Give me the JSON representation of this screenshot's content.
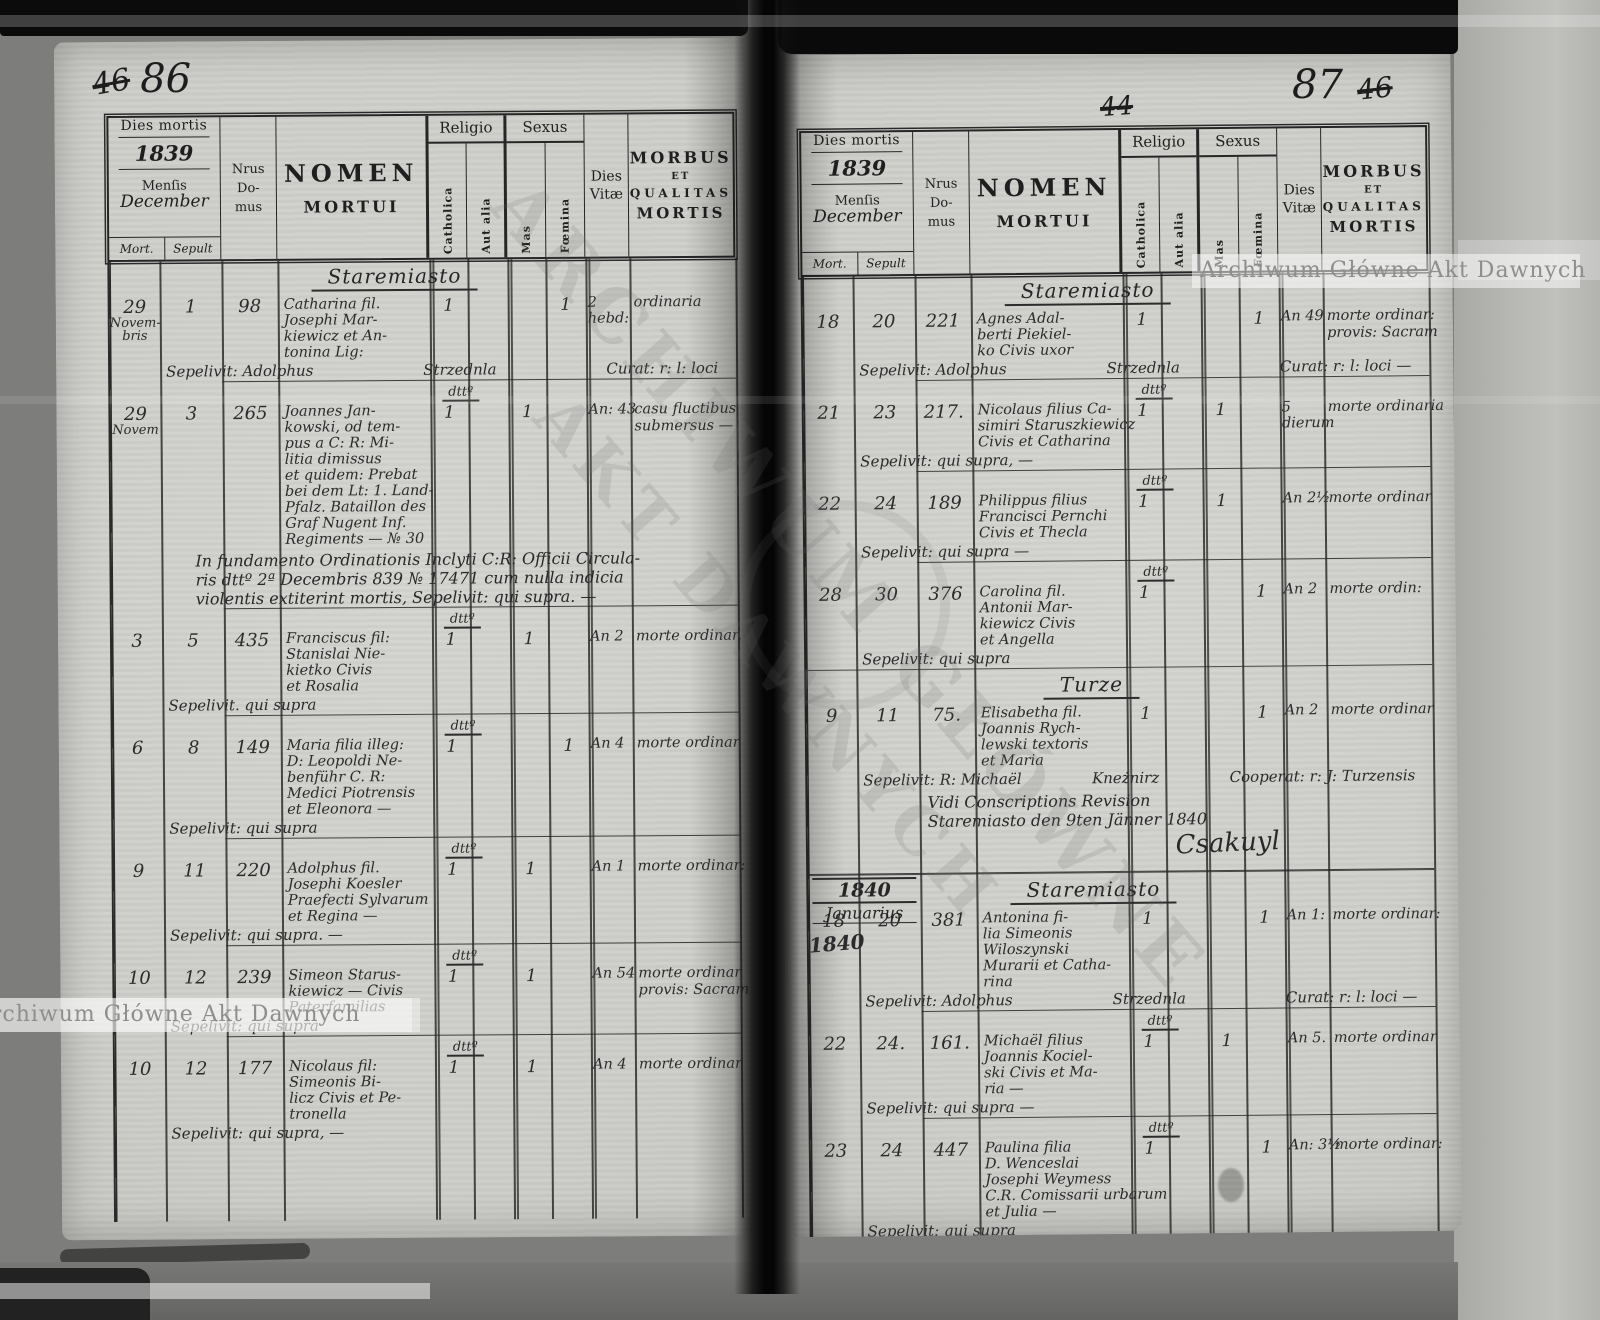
{
  "watermark": {
    "text": "Archiwum Główne Akt Dawnych",
    "big_line1": "ARCHIWUM GŁÓWNE",
    "big_line2": "AKT DAWNYCH"
  },
  "folios": {
    "left_crossed": "46",
    "left_number": "86",
    "right_center_crossed": "44",
    "right_number": "87",
    "right_crossed": "46"
  },
  "header": {
    "dies_mortis": "Dies mortis",
    "year": "1839",
    "mensis": "Menſis",
    "month": "December",
    "mort": "Mort.",
    "sepult": "Sepult",
    "nrus": "Nrus",
    "do": "Do-",
    "mus": "mus",
    "nomen": "NOMEN",
    "mortui": "MORTUI",
    "religio": "Religio",
    "catholica": "Catholica",
    "aut_alia": "Aut alia",
    "sexus": "Sexus",
    "mas": "Mas",
    "foemina": "Fœmina",
    "dies": "Dies",
    "vitae": "Vitæ",
    "morbus": "MORBUS",
    "et": "ET",
    "qualitas": "QUALITAS",
    "mortis": "MORTIS"
  },
  "dtto_label": "dttº",
  "left_page": {
    "blocks": [
      {
        "type": "place",
        "text": "Staremiasto",
        "first": true
      },
      {
        "type": "entry",
        "mort": [
          "29"
        ],
        "mort_sub": [
          "Novem-",
          "bris"
        ],
        "sepult": "1",
        "nrus": "98",
        "name": [
          "Catharina fil.",
          "Josephi Mar-",
          "kiewicz et An-",
          "tonina Lig:"
        ],
        "cath": "1",
        "alia": "",
        "mas": "",
        "foem": "1",
        "vitae": [
          "2",
          "hebd:"
        ],
        "morbus": [
          "ordinaria"
        ],
        "sepelivit": [
          "Sepelivit: Adolphus",
          "Strzednla",
          "Curat: r: l: loci"
        ],
        "spread": true,
        "dtto": true
      },
      {
        "type": "entry",
        "mort": [
          "29"
        ],
        "mort_sub": [
          "Novem"
        ],
        "sepult": "3",
        "nrus": "265",
        "name": [
          "Joannes Jan-",
          "kowski, od tem-",
          "pus a C: R: Mi-",
          "litia dimissus",
          "et quidem: Prebat",
          "bei dem Lt: 1. Land-",
          "Pfalz. Bataillon des",
          "Graf Nugent Inf.",
          "Regiments — № 30"
        ],
        "cath": "1",
        "alia": "",
        "mas": "1",
        "foem": "",
        "vitae": [
          "An: 43"
        ],
        "morbus": [
          "casu fluctibus",
          "submersus —"
        ],
        "sepelivit": null,
        "dtto": false
      },
      {
        "type": "note",
        "lines": [
          "In fundamento Ordinationis Inclyti C:R: Officii Circula-",
          "ris dttº 2ª Decembris 839 № 17471 cum nulla indicia",
          "violentis extiterint mortis, Sepelivit: qui supra. —"
        ],
        "dtto": true
      },
      {
        "type": "entry",
        "mort": [
          "3"
        ],
        "sepult": "5",
        "nrus": "435",
        "name": [
          "Franciscus fil:",
          "Stanislai Nie-",
          "kietko Civis",
          "et Rosalia"
        ],
        "cath": "1",
        "alia": "",
        "mas": "1",
        "foem": "",
        "vitae": [
          "An 2"
        ],
        "morbus": [
          "morte ordinar."
        ],
        "sepelivit": [
          "Sepelivit. qui supra"
        ],
        "dtto": true
      },
      {
        "type": "entry",
        "mort": [
          "6"
        ],
        "sepult": "8",
        "nrus": "149",
        "name": [
          "Maria filia illeg:",
          "D: Leopoldi Ne-",
          "benführ C. R:",
          "Medici Piotrensis",
          "et Eleonora —"
        ],
        "cath": "1",
        "alia": "",
        "mas": "",
        "foem": "1",
        "vitae": [
          "An 4"
        ],
        "morbus": [
          "morte ordinar"
        ],
        "sepelivit": [
          "Sepelivit: qui supra"
        ],
        "dtto": true
      },
      {
        "type": "entry",
        "mort": [
          "9"
        ],
        "sepult": "11",
        "nrus": "220",
        "name": [
          "Adolphus fil.",
          "Josephi Koesler",
          "Praefecti Sylvarum",
          "et Regina —"
        ],
        "cath": "1",
        "alia": "",
        "mas": "1",
        "foem": "",
        "vitae": [
          "An 1"
        ],
        "morbus": [
          "morte ordinar:"
        ],
        "sepelivit": [
          "Sepelivit: qui supra. —"
        ],
        "dtto": true
      },
      {
        "type": "entry",
        "mort": [
          "10"
        ],
        "sepult": "12",
        "nrus": "239",
        "name": [
          "Simeon Starus-",
          "kiewicz — Civis",
          "Paterfamilias"
        ],
        "cath": "1",
        "alia": "",
        "mas": "1",
        "foem": "",
        "vitae": [
          "An 54"
        ],
        "morbus": [
          "morte ordinar",
          "provis: Sacram."
        ],
        "sepelivit": [
          "Sepelivit: qui supra"
        ],
        "dtto": true
      },
      {
        "type": "entry",
        "mort": [
          "10"
        ],
        "sepult": "12",
        "nrus": "177",
        "name": [
          "Nicolaus fil:",
          "Simeonis Bi-",
          "licz Civis et Pe-",
          "tronella"
        ],
        "cath": "1",
        "alia": "",
        "mas": "1",
        "foem": "",
        "vitae": [
          "An 4"
        ],
        "morbus": [
          "morte ordinar"
        ],
        "sepelivit": [
          "Sepelivit: qui supra, —"
        ],
        "dtto": false
      }
    ]
  },
  "right_page": {
    "blocks": [
      {
        "type": "place",
        "text": "Staremiasto",
        "first": true
      },
      {
        "type": "entry",
        "mort": [
          "18"
        ],
        "sepult": "20",
        "nrus": "221",
        "name": [
          "Agnes Adal-",
          "berti Piekiel-",
          "ko Civis uxor"
        ],
        "cath": "1",
        "alia": "",
        "mas": "",
        "foem": "1",
        "vitae": [
          "An 49"
        ],
        "morbus": [
          "morte ordinar:",
          "provis: Sacram"
        ],
        "sepelivit": [
          "Sepelivit: Adolphus",
          "Strzednla",
          "Curat: r: l: loci —"
        ],
        "spread": true,
        "dtto": true
      },
      {
        "type": "entry",
        "mort": [
          "21"
        ],
        "sepult": "23",
        "nrus": "217.",
        "name": [
          "Nicolaus filius Ca-",
          "simiri Staruszkiewicz",
          "Civis et Catharina"
        ],
        "cath": "1",
        "alia": "",
        "mas": "1",
        "foem": "",
        "vitae": [
          "5",
          "dierum"
        ],
        "morbus": [
          "morte ordinaria"
        ],
        "sepelivit": [
          "Sepelivit: qui supra, —"
        ],
        "dtto": true
      },
      {
        "type": "entry",
        "mort": [
          "22"
        ],
        "sepult": "24",
        "nrus": "189",
        "name": [
          "Philippus filius",
          "Francisci Pernchi",
          "Civis et Thecla"
        ],
        "cath": "1",
        "alia": "",
        "mas": "1",
        "foem": "",
        "vitae": [
          "An 2½"
        ],
        "morbus": [
          "morte ordinar"
        ],
        "sepelivit": [
          "Sepelivit: qui supra —"
        ],
        "dtto": true
      },
      {
        "type": "entry",
        "mort": [
          "28"
        ],
        "sepult": "30",
        "nrus": "376",
        "name": [
          "Carolina fil.",
          "Antonii Mar-",
          "kiewicz Civis",
          "et Angella"
        ],
        "cath": "1",
        "alia": "",
        "mas": "",
        "foem": "1",
        "vitae": [
          "An 2"
        ],
        "morbus": [
          "morte ordin:"
        ],
        "sepelivit": [
          "Sepelivit: qui supra"
        ],
        "dtto": false
      },
      {
        "type": "place",
        "text": "Turze"
      },
      {
        "type": "entry",
        "mort": [
          "9"
        ],
        "sepult": "11",
        "nrus": "75.",
        "name": [
          "Elisabetha fil.",
          "Joannis Rych-",
          "lewski textoris",
          "et Maria"
        ],
        "cath": "1",
        "alia": "",
        "mas": "",
        "foem": "1",
        "vitae": [
          "An 2"
        ],
        "morbus": [
          "morte ordinar"
        ],
        "sepelivit": [
          "Sepelivit: R: Michaël",
          "Kneżnirz",
          "Cooperat: r: J: Turzensis"
        ],
        "spread": true,
        "dtto": false
      },
      {
        "type": "note",
        "vidi": true,
        "lines": [
          "Vidi Conscriptions Revision",
          "Staremiasto den 9ten Jänner 1840"
        ],
        "signature": "Csakuyl",
        "ruled_bottom": true
      },
      {
        "type": "place",
        "text": "Staremiasto",
        "margin_year": "1840",
        "margin_month": "Januarius"
      },
      {
        "type": "entry",
        "mort": [
          "18"
        ],
        "mort_extra": "1840",
        "sepult": "20",
        "nrus": "381",
        "name": [
          "Antonina fi-",
          "lia Simeonis",
          "Wiloszynski",
          "Murarii et Catha-",
          "rina"
        ],
        "cath": "1",
        "alia": "",
        "mas": "",
        "foem": "1",
        "vitae": [
          "An 1:"
        ],
        "morbus": [
          "morte ordinar:"
        ],
        "sepelivit": [
          "Sepelivit: Adolphus",
          "Strzednla",
          "Curat: r: l: loci —"
        ],
        "spread": true,
        "dtto": true
      },
      {
        "type": "entry",
        "mort": [
          "22"
        ],
        "sepult": "24.",
        "nrus": "161.",
        "name": [
          "Michaël filius",
          "Joannis Kociel-",
          "ski Civis et Ma-",
          "ria —"
        ],
        "cath": "1",
        "alia": "",
        "mas": "1",
        "foem": "",
        "vitae": [
          "An 5."
        ],
        "morbus": [
          "morte ordinar"
        ],
        "sepelivit": [
          "Sepelivit: qui supra —"
        ],
        "dtto": true
      },
      {
        "type": "entry",
        "mort": [
          "23"
        ],
        "sepult": "24",
        "nrus": "447",
        "name": [
          "Paulina filia",
          "D. Wenceslai",
          "Josephi Weymess",
          "C.R. Comissarii urbarum",
          "et Julia —"
        ],
        "cath": "1",
        "alia": "",
        "mas": "",
        "foem": "1",
        "vitae": [
          "An: 3½"
        ],
        "morbus": [
          "morte ordinar:"
        ],
        "sepelivit": [
          "Sepelivit: qui supra"
        ],
        "dtto": false
      }
    ]
  }
}
